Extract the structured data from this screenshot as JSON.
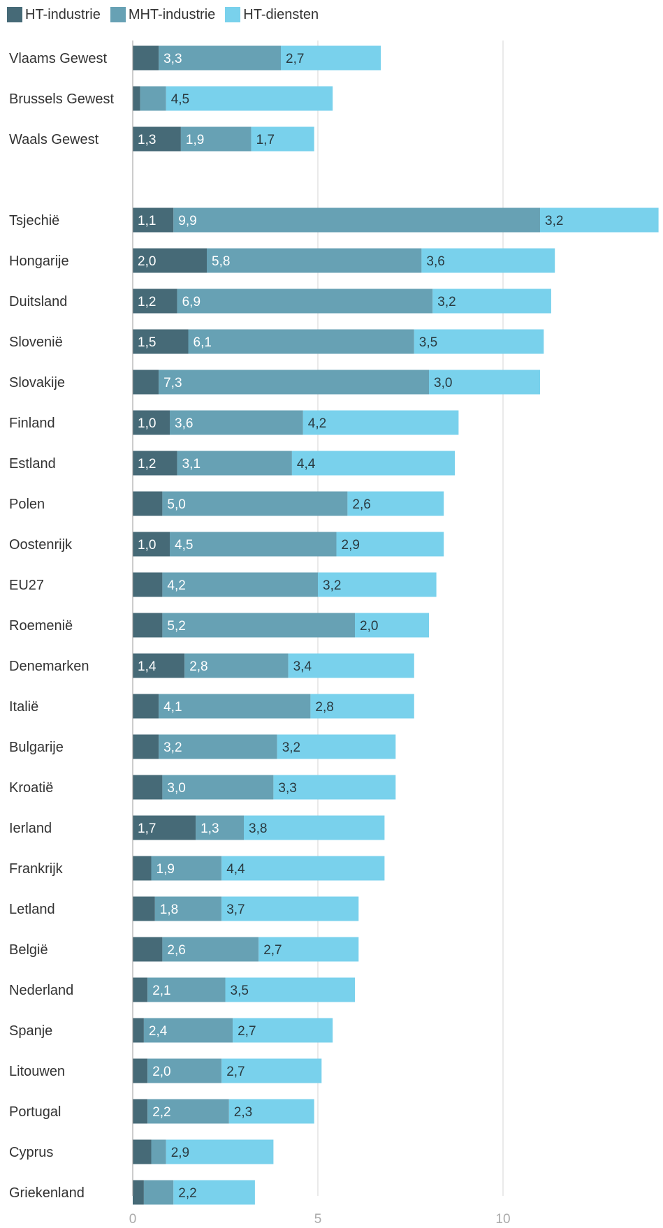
{
  "chart_data": {
    "type": "bar",
    "orientation": "horizontal",
    "stacked": true,
    "grid": true,
    "legend_position": "top-left",
    "xlim": [
      0,
      14.25
    ],
    "x_ticks": [
      0,
      5,
      10
    ],
    "x_tick_labels": [
      "0",
      "5",
      "10"
    ],
    "categories": [
      "Vlaams Gewest",
      "Brussels Gewest",
      "Waals Gewest",
      "",
      "Tsjechië",
      "Hongarije",
      "Duitsland",
      "Slovenië",
      "Slovakije",
      "Finland",
      "Estland",
      "Polen",
      "Oostenrijk",
      "EU27",
      "Roemenië",
      "Denemarken",
      "Italië",
      "Bulgarije",
      "Kroatië",
      "Ierland",
      "Frankrijk",
      "Letland",
      "België",
      "Nederland",
      "Spanje",
      "Litouwen",
      "Portugal",
      "Cyprus",
      "Griekenland"
    ],
    "series": [
      {
        "name": "HT-industrie",
        "color": "#466a77",
        "values": [
          0.7,
          0.2,
          1.3,
          null,
          1.1,
          2.0,
          1.2,
          1.5,
          0.7,
          1.0,
          1.2,
          0.8,
          1.0,
          0.8,
          0.8,
          1.4,
          0.7,
          0.7,
          0.8,
          1.7,
          0.5,
          0.6,
          0.8,
          0.4,
          0.3,
          0.4,
          0.4,
          0.5,
          0.3
        ],
        "labels": [
          "",
          "",
          "1,3",
          "",
          "1,1",
          "2,0",
          "1,2",
          "1,5",
          "",
          "1,0",
          "1,2",
          "",
          "1,0",
          "",
          "",
          "1,4",
          "",
          "",
          "",
          "1,7",
          "",
          "",
          "",
          "",
          "",
          "",
          "",
          "",
          ""
        ]
      },
      {
        "name": "MHT-industrie",
        "color": "#67a1b4",
        "values": [
          3.3,
          0.7,
          1.9,
          null,
          9.9,
          5.8,
          6.9,
          6.1,
          7.3,
          3.6,
          3.1,
          5.0,
          4.5,
          4.2,
          5.2,
          2.8,
          4.1,
          3.2,
          3.0,
          1.3,
          1.9,
          1.8,
          2.6,
          2.1,
          2.4,
          2.0,
          2.2,
          0.4,
          0.8
        ],
        "labels": [
          "3,3",
          "",
          "1,9",
          "",
          "9,9",
          "5,8",
          "6,9",
          "6,1",
          "7,3",
          "3,6",
          "3,1",
          "5,0",
          "4,5",
          "4,2",
          "5,2",
          "2,8",
          "4,1",
          "3,2",
          "3,0",
          "1,3",
          "1,9",
          "1,8",
          "2,6",
          "2,1",
          "2,4",
          "2,0",
          "2,2",
          "",
          ""
        ]
      },
      {
        "name": "HT-diensten",
        "color": "#79d1ec",
        "values": [
          2.7,
          4.5,
          1.7,
          null,
          3.2,
          3.6,
          3.2,
          3.5,
          3.0,
          4.2,
          4.4,
          2.6,
          2.9,
          3.2,
          2.0,
          3.4,
          2.8,
          3.2,
          3.3,
          3.8,
          4.4,
          3.7,
          2.7,
          3.5,
          2.7,
          2.7,
          2.3,
          2.9,
          2.2
        ],
        "labels": [
          "2,7",
          "4,5",
          "1,7",
          "",
          "3,2",
          "3,6",
          "3,2",
          "3,5",
          "3,0",
          "4,2",
          "4,4",
          "2,6",
          "2,9",
          "3,2",
          "2,0",
          "3,4",
          "2,8",
          "3,2",
          "3,3",
          "3,8",
          "4,4",
          "3,7",
          "2,7",
          "3,5",
          "2,7",
          "2,7",
          "2,3",
          "2,9",
          "2,2"
        ]
      }
    ]
  }
}
